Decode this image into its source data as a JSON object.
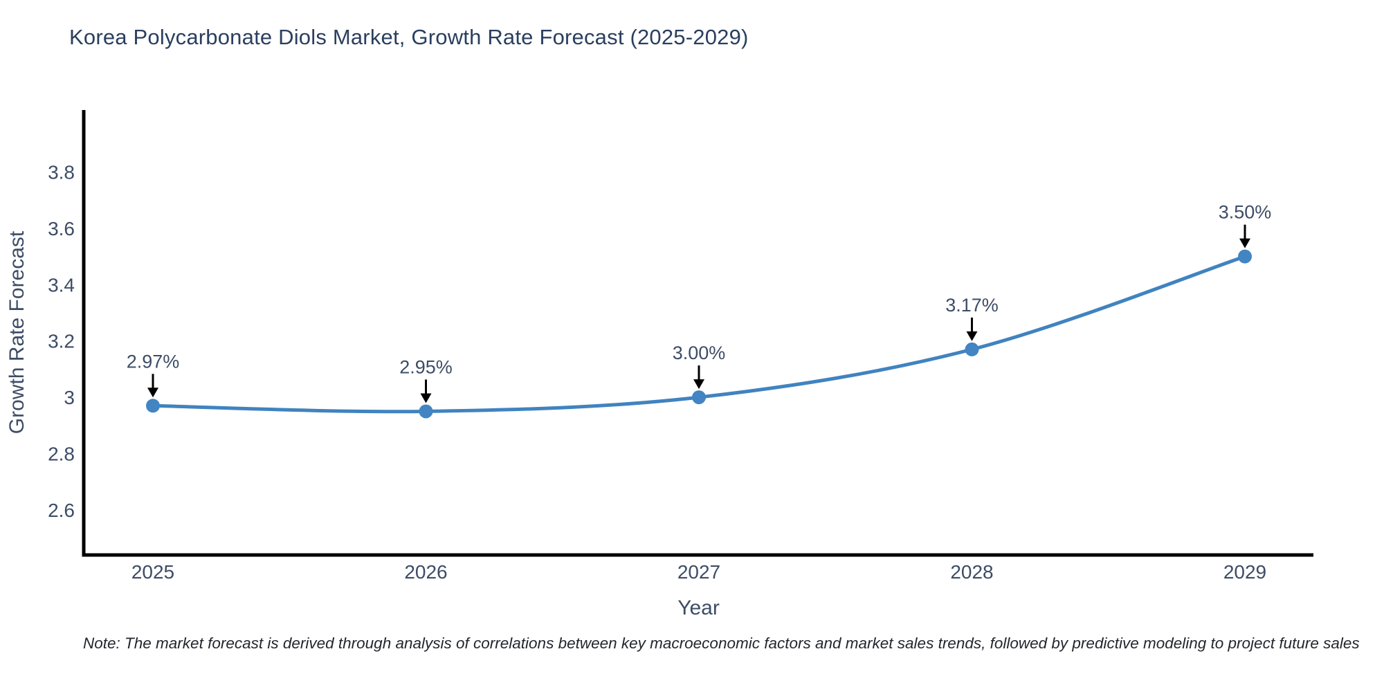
{
  "title": "Korea Polycarbonate Diols Market, Growth Rate Forecast (2025-2029)",
  "note": "Note: The market forecast is derived through analysis of correlations between key macroeconomic factors and market sales trends, followed by predictive modeling to project future sales",
  "chart_data": {
    "type": "line",
    "title": "Korea Polycarbonate Diols Market, Growth Rate Forecast (2025-2029)",
    "x": [
      2025,
      2026,
      2027,
      2028,
      2029
    ],
    "series": [
      {
        "name": "Growth Rate Forecast",
        "values": [
          2.97,
          2.95,
          3.0,
          3.17,
          3.5
        ]
      }
    ],
    "point_labels": [
      "2.97%",
      "2.95%",
      "3.00%",
      "3.17%",
      "3.50%"
    ],
    "xlabel": "Year",
    "ylabel": "Growth Rate Forecast",
    "xtick_labels": [
      "2025",
      "2026",
      "2027",
      "2028",
      "2029"
    ],
    "yticks": [
      2.6,
      2.8,
      3,
      3.2,
      3.4,
      3.6,
      3.8
    ],
    "ytick_labels": [
      "2.6",
      "2.8",
      "3",
      "3.2",
      "3.4",
      "3.6",
      "3.8"
    ],
    "ylim": [
      2.44,
      4.02
    ],
    "grid": false,
    "legend": false,
    "line_shape": "spline",
    "colors": {
      "line": "#4083bf",
      "marker": "#4285c2",
      "axis": "#000000",
      "arrow": "#000000",
      "title_text": "#2a3f5f",
      "tick_text": "#3d4c66",
      "annotation_text": "#3d4c66",
      "note_text": "#22272e"
    }
  }
}
